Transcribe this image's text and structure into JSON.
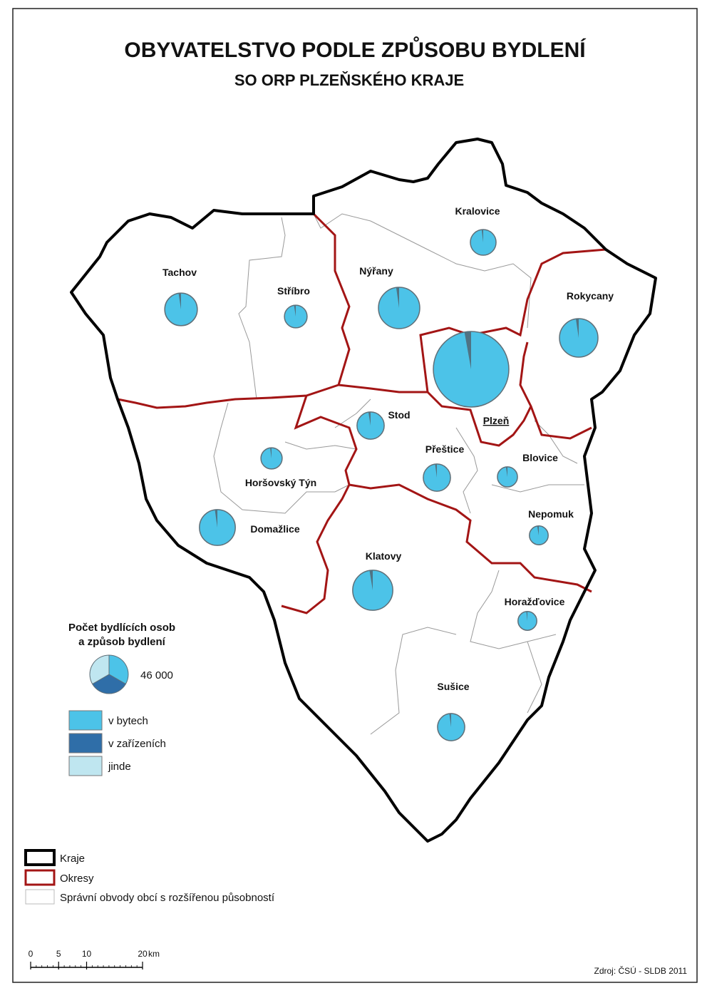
{
  "title": "OBYVATELSTVO PODLE ZPŮSOBU BYDLENÍ",
  "subtitle": "SO ORP PLZEŇSKÉHO KRAJE",
  "regions": [
    {
      "name": "Kralovice",
      "total": 20500,
      "facilities": 400
    },
    {
      "name": "Tachov",
      "total": 33000,
      "facilities": 800
    },
    {
      "name": "Stříbro",
      "total": 16000,
      "facilities": 400
    },
    {
      "name": "Nýřany",
      "total": 53000,
      "facilities": 1200
    },
    {
      "name": "Rokycany",
      "total": 46000,
      "facilities": 1100
    },
    {
      "name": "Plzeň",
      "total": 177000,
      "facilities": 5000
    },
    {
      "name": "Stod",
      "total": 23000,
      "facilities": 600
    },
    {
      "name": "Horšovský Týn",
      "total": 14000,
      "facilities": 300
    },
    {
      "name": "Přeštice",
      "total": 23000,
      "facilities": 500
    },
    {
      "name": "Blovice",
      "total": 12500,
      "facilities": 300
    },
    {
      "name": "Nepomuk",
      "total": 11000,
      "facilities": 300
    },
    {
      "name": "Domažlice",
      "total": 40000,
      "facilities": 900
    },
    {
      "name": "Klatovy",
      "total": 50000,
      "facilities": 1300
    },
    {
      "name": "Horažďovice",
      "total": 11000,
      "facilities": 200
    },
    {
      "name": "Sušice",
      "total": 23000,
      "facilities": 500
    }
  ],
  "legend": {
    "title": [
      "Počet bydlících osob",
      "a způsob bydlení"
    ],
    "size": {
      "value": 46000,
      "label": "46 000"
    },
    "items": [
      {
        "label": "v bytech",
        "color": "#4cc3e8"
      },
      {
        "label": "v zařízeních",
        "color": "#2f6ea8"
      },
      {
        "label": "jinde",
        "color": "#bfe6f0"
      }
    ],
    "boundaries": [
      "Kraje",
      "Okresy",
      "Správní obvody obcí s rozšířenou působností"
    ]
  },
  "scale": {
    "ticks": [
      0,
      5,
      10,
      20
    ],
    "unit": "km"
  },
  "source": "Zdroj: ČSÚ - SLDB 2011"
}
